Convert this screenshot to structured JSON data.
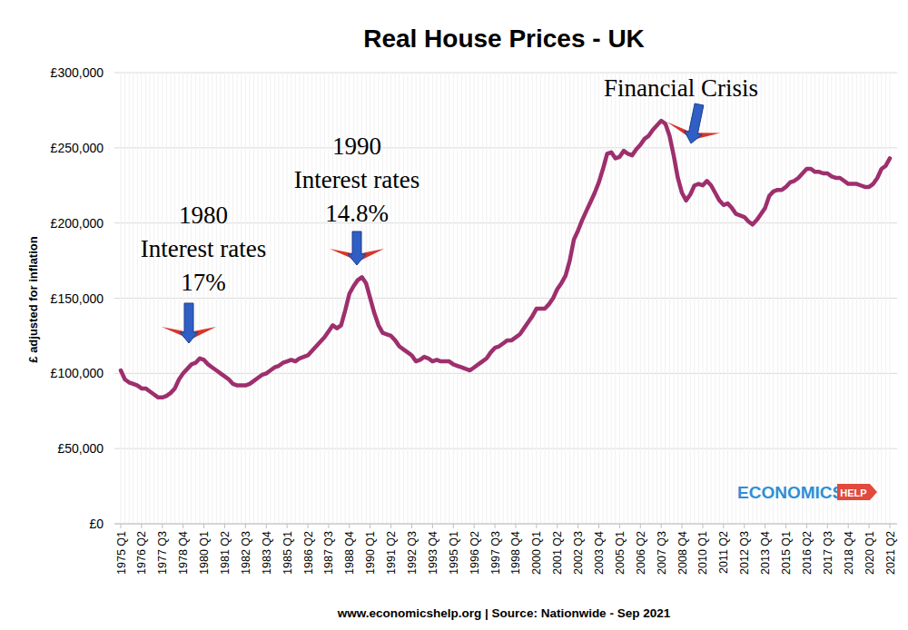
{
  "chart_data": {
    "type": "line",
    "title": "Real House Prices - UK",
    "y_label": "£ adjusted for inflation",
    "source": "www.economicshelp.org | Source: Nationwide - Sep 2021",
    "logo": [
      "ECONOMICS",
      "HELP"
    ],
    "color": "#9e2f6d",
    "ylim": [
      0,
      300000
    ],
    "yticks": [
      {
        "value": 0,
        "label": "£0"
      },
      {
        "value": 50000,
        "label": "£50,000"
      },
      {
        "value": 100000,
        "label": "£100,000"
      },
      {
        "value": 150000,
        "label": "£150,000"
      },
      {
        "value": 200000,
        "label": "£200,000"
      },
      {
        "value": 250000,
        "label": "£250,000"
      },
      {
        "value": 300000,
        "label": "£300,000"
      }
    ],
    "grid": true,
    "annotations": [
      {
        "lines": [
          "1980",
          "Interest rates",
          "17%"
        ]
      },
      {
        "lines": [
          "1990",
          "Interest rates",
          "14.8%"
        ]
      },
      {
        "lines": [
          "Financial Crisis"
        ]
      }
    ],
    "categories": [
      "1975 Q1",
      null,
      null,
      null,
      null,
      "1976 Q2",
      null,
      null,
      null,
      null,
      "1977 Q3",
      null,
      null,
      null,
      null,
      "1978 Q4",
      null,
      null,
      null,
      null,
      "1980 Q1",
      null,
      null,
      null,
      null,
      "1981 Q2",
      null,
      null,
      null,
      null,
      "1982 Q3",
      null,
      null,
      null,
      null,
      "1983 Q4",
      null,
      null,
      null,
      null,
      "1985 Q1",
      null,
      null,
      null,
      null,
      "1986 Q2",
      null,
      null,
      null,
      null,
      "1987 Q3",
      null,
      null,
      null,
      null,
      "1988 Q4",
      null,
      null,
      null,
      null,
      "1990 Q1",
      null,
      null,
      null,
      null,
      "1991 Q2",
      null,
      null,
      null,
      null,
      "1992 Q3",
      null,
      null,
      null,
      null,
      "1993 Q4",
      null,
      null,
      null,
      null,
      "1995 Q1",
      null,
      null,
      null,
      null,
      "1996 Q2",
      null,
      null,
      null,
      null,
      "1997 Q3",
      null,
      null,
      null,
      null,
      "1998 Q4",
      null,
      null,
      null,
      null,
      "2000 Q1",
      null,
      null,
      null,
      null,
      "2001 Q2",
      null,
      null,
      null,
      null,
      "2002 Q3",
      null,
      null,
      null,
      null,
      "2003 Q4",
      null,
      null,
      null,
      null,
      "2005 Q1",
      null,
      null,
      null,
      null,
      "2006 Q2",
      null,
      null,
      null,
      null,
      "2007 Q3",
      null,
      null,
      null,
      null,
      "2008 Q4",
      null,
      null,
      null,
      null,
      "2010 Q1",
      null,
      null,
      null,
      null,
      "2011 Q2",
      null,
      null,
      null,
      null,
      "2012 Q3",
      null,
      null,
      null,
      null,
      "2013 Q4",
      null,
      null,
      null,
      null,
      "2015 Q1",
      null,
      null,
      null,
      null,
      "2016 Q2",
      null,
      null,
      null,
      null,
      "2017 Q3",
      null,
      null,
      null,
      null,
      "2018 Q4",
      null,
      null,
      null,
      null,
      "2020 Q1",
      null,
      null,
      null,
      null,
      "2021 Q2"
    ],
    "values": [
      102000,
      96000,
      94000,
      93000,
      92000,
      90000,
      90000,
      88000,
      86000,
      84000,
      84000,
      85000,
      87000,
      90000,
      96000,
      100000,
      103000,
      106000,
      107000,
      110000,
      109000,
      106000,
      104000,
      102000,
      100000,
      98000,
      96000,
      93000,
      92000,
      92000,
      92000,
      93000,
      95000,
      97000,
      99000,
      100000,
      102000,
      104000,
      105000,
      107000,
      108000,
      109000,
      108000,
      110000,
      111000,
      112000,
      115000,
      118000,
      121000,
      124000,
      128000,
      132000,
      130000,
      132000,
      142000,
      153000,
      158000,
      162000,
      164000,
      160000,
      150000,
      140000,
      132000,
      127000,
      126000,
      125000,
      122000,
      118000,
      116000,
      114000,
      112000,
      108000,
      109000,
      111000,
      110000,
      108000,
      109000,
      108000,
      108000,
      108000,
      106000,
      105000,
      104000,
      103000,
      102000,
      104000,
      106000,
      108000,
      110000,
      114000,
      117000,
      118000,
      120000,
      122000,
      122000,
      124000,
      126000,
      130000,
      134000,
      138000,
      143000,
      143000,
      143000,
      146000,
      150000,
      156000,
      160000,
      165000,
      175000,
      189000,
      195000,
      202000,
      208000,
      214000,
      220000,
      227000,
      236000,
      246000,
      247000,
      243000,
      244000,
      248000,
      246000,
      245000,
      249000,
      252000,
      256000,
      258000,
      262000,
      265000,
      268000,
      266000,
      258000,
      245000,
      230000,
      220000,
      215000,
      219000,
      225000,
      226000,
      225000,
      228000,
      225000,
      220000,
      215000,
      212000,
      213000,
      210000,
      206000,
      205000,
      204000,
      201000,
      199000,
      202000,
      206000,
      210000,
      218000,
      221000,
      222000,
      222000,
      224000,
      227000,
      228000,
      230000,
      233000,
      236000,
      236000,
      234000,
      234000,
      233000,
      233000,
      231000,
      230000,
      230000,
      228000,
      226000,
      226000,
      226000,
      225000,
      224000,
      224000,
      226000,
      230000,
      236000,
      238000,
      243000
    ]
  }
}
